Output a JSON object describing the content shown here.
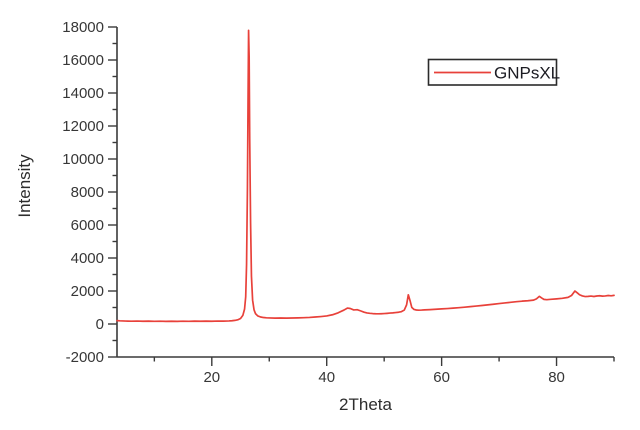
{
  "figure": {
    "background": "#ffffff",
    "axis_color": "#3a3a3a",
    "text_color": "#373737"
  },
  "chart_data": {
    "type": "line",
    "title": "",
    "xlabel": "2Theta",
    "ylabel": "Intensity",
    "xlim": [
      3.5,
      90
    ],
    "ylim": [
      -2000,
      18000
    ],
    "grid": false,
    "x_major_ticks": [
      20,
      40,
      60,
      80
    ],
    "x_minor_ticks": [
      10,
      30,
      50,
      70,
      90
    ],
    "y_major_ticks": [
      -2000,
      0,
      2000,
      4000,
      6000,
      8000,
      10000,
      12000,
      14000,
      16000,
      18000
    ],
    "y_minor_ticks": [
      -1000,
      1000,
      3000,
      5000,
      7000,
      9000,
      11000,
      13000,
      15000,
      17000
    ],
    "legend": {
      "position": "top-right",
      "entries": [
        {
          "label": "GNPsXL",
          "color": "#e8413a"
        }
      ]
    },
    "main_peak": {
      "x": 26.4,
      "y": 17800
    },
    "series": [
      {
        "name": "GNPsXL",
        "color": "#e8413a",
        "points": [
          [
            3.5,
            205
          ],
          [
            4,
            192
          ],
          [
            4.5,
            185
          ],
          [
            5,
            178
          ],
          [
            6,
            170
          ],
          [
            7,
            177
          ],
          [
            8,
            166
          ],
          [
            9,
            173
          ],
          [
            10,
            163
          ],
          [
            11,
            171
          ],
          [
            12,
            160
          ],
          [
            13,
            168
          ],
          [
            14,
            161
          ],
          [
            15,
            170
          ],
          [
            16,
            163
          ],
          [
            17,
            172
          ],
          [
            18,
            165
          ],
          [
            19,
            174
          ],
          [
            20,
            168
          ],
          [
            21,
            177
          ],
          [
            22,
            172
          ],
          [
            23,
            184
          ],
          [
            23.5,
            196
          ],
          [
            24,
            218
          ],
          [
            24.5,
            252
          ],
          [
            25,
            335
          ],
          [
            25.4,
            520
          ],
          [
            25.7,
            900
          ],
          [
            25.9,
            1650
          ],
          [
            26.05,
            3600
          ],
          [
            26.2,
            8200
          ],
          [
            26.3,
            13200
          ],
          [
            26.4,
            17800
          ],
          [
            26.5,
            16200
          ],
          [
            26.6,
            11200
          ],
          [
            26.75,
            6100
          ],
          [
            26.9,
            2900
          ],
          [
            27.1,
            1450
          ],
          [
            27.35,
            860
          ],
          [
            27.6,
            630
          ],
          [
            28,
            490
          ],
          [
            28.5,
            425
          ],
          [
            29,
            392
          ],
          [
            29.5,
            376
          ],
          [
            30,
            368
          ],
          [
            31,
            357
          ],
          [
            32,
            364
          ],
          [
            33,
            355
          ],
          [
            34,
            362
          ],
          [
            35,
            369
          ],
          [
            36,
            381
          ],
          [
            37,
            399
          ],
          [
            38,
            424
          ],
          [
            39,
            452
          ],
          [
            40,
            487
          ],
          [
            41,
            560
          ],
          [
            42,
            680
          ],
          [
            43,
            845
          ],
          [
            43.6,
            965
          ],
          [
            44.1,
            938
          ],
          [
            44.7,
            852
          ],
          [
            45.3,
            868
          ],
          [
            45.9,
            796
          ],
          [
            46.5,
            718
          ],
          [
            47,
            672
          ],
          [
            47.5,
            646
          ],
          [
            48,
            631
          ],
          [
            48.5,
            621
          ],
          [
            49,
            617
          ],
          [
            49.5,
            623
          ],
          [
            50,
            633
          ],
          [
            50.5,
            646
          ],
          [
            51,
            661
          ],
          [
            51.5,
            673
          ],
          [
            52,
            692
          ],
          [
            52.5,
            714
          ],
          [
            53,
            748
          ],
          [
            53.5,
            845
          ],
          [
            53.9,
            1160
          ],
          [
            54.2,
            1770
          ],
          [
            54.5,
            1420
          ],
          [
            54.8,
            1010
          ],
          [
            55.2,
            880
          ],
          [
            55.6,
            848
          ],
          [
            56,
            838
          ],
          [
            56.5,
            846
          ],
          [
            57,
            858
          ],
          [
            58,
            872
          ],
          [
            59,
            893
          ],
          [
            60,
            916
          ],
          [
            61,
            936
          ],
          [
            62,
            962
          ],
          [
            63,
            988
          ],
          [
            64,
            1018
          ],
          [
            65,
            1052
          ],
          [
            66,
            1086
          ],
          [
            67,
            1122
          ],
          [
            68,
            1160
          ],
          [
            69,
            1198
          ],
          [
            70,
            1238
          ],
          [
            71,
            1276
          ],
          [
            72,
            1316
          ],
          [
            73,
            1352
          ],
          [
            74,
            1384
          ],
          [
            75,
            1408
          ],
          [
            76,
            1446
          ],
          [
            76.5,
            1524
          ],
          [
            77,
            1676
          ],
          [
            77.4,
            1580
          ],
          [
            77.8,
            1492
          ],
          [
            78.3,
            1472
          ],
          [
            79,
            1496
          ],
          [
            80,
            1524
          ],
          [
            81,
            1558
          ],
          [
            82,
            1614
          ],
          [
            82.6,
            1724
          ],
          [
            83.2,
            1998
          ],
          [
            83.6,
            1890
          ],
          [
            84,
            1772
          ],
          [
            84.5,
            1700
          ],
          [
            85,
            1662
          ],
          [
            85.5,
            1676
          ],
          [
            86,
            1694
          ],
          [
            86.5,
            1668
          ],
          [
            87,
            1698
          ],
          [
            87.5,
            1712
          ],
          [
            88,
            1688
          ],
          [
            88.5,
            1702
          ],
          [
            89,
            1726
          ],
          [
            89.5,
            1708
          ],
          [
            90,
            1736
          ]
        ]
      }
    ]
  }
}
